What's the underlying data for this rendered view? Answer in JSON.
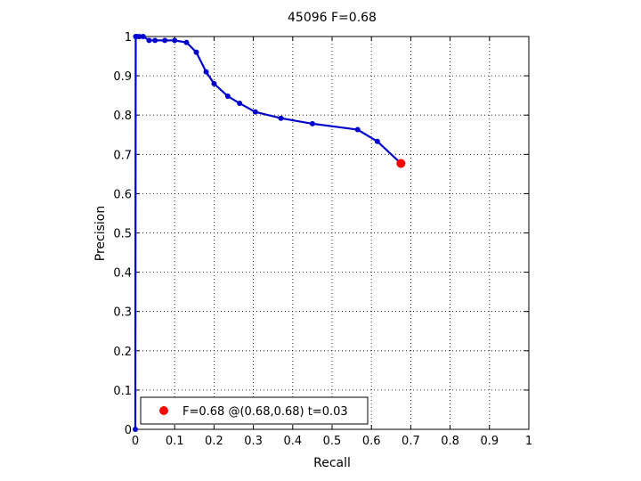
{
  "chart_data": {
    "type": "line",
    "title": "45096 F=0.68",
    "xlabel": "Recall",
    "ylabel": "Precision",
    "xlim": [
      0,
      1
    ],
    "ylim": [
      0,
      1
    ],
    "xticks": [
      0,
      0.1,
      0.2,
      0.3,
      0.4,
      0.5,
      0.6,
      0.7,
      0.8,
      0.9,
      1
    ],
    "yticks": [
      0,
      0.1,
      0.2,
      0.3,
      0.4,
      0.5,
      0.6,
      0.7,
      0.8,
      0.9,
      1
    ],
    "tick_labels": [
      "0",
      "0.1",
      "0.2",
      "0.3",
      "0.4",
      "0.5",
      "0.6",
      "0.7",
      "0.8",
      "0.9",
      "1"
    ],
    "grid": true,
    "legend_position": "bottom-left",
    "series": [
      {
        "color": "#0000cc",
        "x": [
          0,
          0.001,
          0.003,
          0.01,
          0.02,
          0.035,
          0.05,
          0.075,
          0.1,
          0.13,
          0.155,
          0.18,
          0.2,
          0.235,
          0.265,
          0.305,
          0.37,
          0.45,
          0.565,
          0.615,
          0.675
        ],
        "y": [
          0,
          1,
          1,
          1,
          1,
          0.99,
          0.99,
          0.99,
          0.99,
          0.985,
          0.96,
          0.91,
          0.88,
          0.848,
          0.83,
          0.808,
          0.792,
          0.778,
          0.763,
          0.733,
          0.677
        ]
      }
    ],
    "highlight": {
      "color": "#ff0000",
      "x": 0.675,
      "y": 0.677,
      "label": "F=0.68 @(0.68,0.68) t=0.03"
    }
  }
}
